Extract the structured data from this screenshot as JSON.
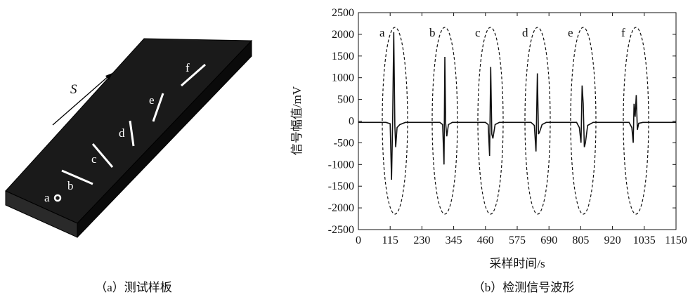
{
  "diagram": {
    "direction_label": "S",
    "defect_labels": [
      "a",
      "b",
      "c",
      "d",
      "e",
      "f"
    ],
    "caption": "（a）测试样板"
  },
  "chart_data": {
    "type": "line",
    "x_label": "采样时间/s",
    "y_label": "信号幅值/mV",
    "caption": "（b）检测信号波形",
    "annotations": [
      "a",
      "b",
      "c",
      "d",
      "e",
      "f"
    ],
    "color": "#111111",
    "xlim": [
      0,
      1150
    ],
    "xticks": [
      0,
      115,
      230,
      345,
      460,
      575,
      690,
      805,
      920,
      1035,
      1150
    ],
    "ylim": [
      -2500,
      2500
    ],
    "yticks": [
      -2500,
      -2000,
      -1500,
      -1000,
      -500,
      0,
      500,
      1000,
      1500,
      2000,
      2500
    ],
    "x": [
      0,
      100,
      115,
      120,
      124,
      128,
      132,
      135,
      140,
      150,
      170,
      295,
      305,
      310,
      313,
      316,
      320,
      326,
      340,
      460,
      470,
      475,
      479,
      483,
      487,
      495,
      510,
      625,
      637,
      643,
      648,
      652,
      656,
      665,
      680,
      790,
      800,
      806,
      810,
      814,
      818,
      822,
      830,
      850,
      980,
      990,
      995,
      998,
      1002,
      1006,
      1010,
      1015,
      1030,
      1150
    ],
    "values": [
      -30,
      -30,
      -60,
      -1350,
      -20,
      2050,
      -100,
      -600,
      -150,
      -80,
      -30,
      -30,
      -80,
      -1000,
      1480,
      -50,
      -350,
      -80,
      -30,
      -30,
      -80,
      -800,
      1250,
      -300,
      -400,
      -80,
      -30,
      -30,
      -100,
      -700,
      1100,
      -300,
      -250,
      -80,
      -30,
      -30,
      -150,
      -500,
      820,
      400,
      -600,
      -500,
      -100,
      -30,
      -30,
      -150,
      -500,
      400,
      100,
      600,
      -200,
      -50,
      -30,
      -30
    ]
  }
}
